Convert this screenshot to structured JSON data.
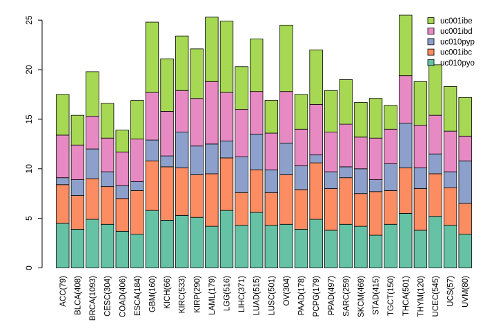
{
  "chart_data": {
    "type": "bar",
    "stacked": true,
    "title": "",
    "xlabel": "",
    "ylabel": "",
    "ylim": [
      0,
      25.5
    ],
    "yticks": [
      0,
      5,
      10,
      15,
      20,
      25
    ],
    "grid": false,
    "legend_position": "top-right",
    "categories": [
      "ACC(79)",
      "BLCA(408)",
      "BRCA(1093)",
      "CESC(304)",
      "COAD(406)",
      "ESCA(184)",
      "GBM(160)",
      "KICH(66)",
      "KIRC(533)",
      "KIRP(290)",
      "LAML(179)",
      "LGG(516)",
      "LIHC(371)",
      "LUAD(515)",
      "LUSC(501)",
      "OV(304)",
      "PAAD(178)",
      "PCPG(179)",
      "PPAD(497)",
      "SARC(259)",
      "SKCM(469)",
      "STAD(415)",
      "TGCT(150)",
      "THCA(501)",
      "THYM(120)",
      "UCEC(545)",
      "UCS(57)",
      "UVM(80)"
    ],
    "series": [
      {
        "name": "uc010pyo",
        "color": "#66c2a5",
        "values": [
          4.5,
          3.9,
          4.9,
          4.4,
          3.7,
          3.4,
          5.8,
          4.8,
          5.3,
          5.1,
          4.2,
          5.8,
          4.3,
          5.6,
          4.3,
          4.4,
          3.9,
          4.9,
          3.8,
          4.4,
          4.2,
          3.3,
          4.4,
          5.5,
          3.8,
          5.2,
          4.3,
          3.4
        ]
      },
      {
        "name": "uc001ibc",
        "color": "#fc8d62",
        "values": [
          3.9,
          3.4,
          4.1,
          3.8,
          3.3,
          4.4,
          5.0,
          5.4,
          4.8,
          4.3,
          5.3,
          5.3,
          3.3,
          4.3,
          3.3,
          5.0,
          4.0,
          5.7,
          4.2,
          4.7,
          3.3,
          4.4,
          3.4,
          4.6,
          4.2,
          4.3,
          3.8,
          3.1
        ]
      },
      {
        "name": "uc010pyp",
        "color": "#8da0cb",
        "values": [
          0.7,
          1.6,
          3.0,
          1.5,
          1.3,
          0.9,
          2.1,
          1.1,
          3.6,
          2.9,
          3.0,
          1.7,
          3.6,
          3.6,
          2.3,
          3.2,
          2.4,
          0.8,
          1.7,
          1.1,
          2.5,
          1.2,
          2.7,
          4.5,
          2.1,
          2.0,
          1.6,
          4.3
        ]
      },
      {
        "name": "uc001ibd",
        "color": "#e78ac3",
        "values": [
          4.3,
          3.5,
          3.3,
          3.4,
          3.4,
          4.3,
          4.8,
          4.5,
          4.2,
          4.8,
          6.3,
          4.9,
          4.8,
          4.3,
          3.7,
          5.2,
          3.7,
          5.1,
          4.0,
          4.3,
          3.2,
          4.2,
          3.5,
          4.8,
          4.3,
          3.9,
          4.1,
          2.5
        ]
      },
      {
        "name": "uc001ibe",
        "color": "#a6d854",
        "values": [
          4.1,
          3.0,
          4.5,
          3.5,
          2.2,
          3.9,
          7.1,
          5.3,
          5.5,
          5.0,
          6.5,
          7.2,
          4.3,
          5.3,
          3.3,
          6.7,
          3.5,
          5.5,
          4.2,
          4.5,
          3.5,
          4.0,
          2.4,
          6.1,
          4.4,
          5.1,
          4.5,
          3.9
        ]
      }
    ],
    "legend_order": [
      "uc001ibe",
      "uc001ibd",
      "uc010pyp",
      "uc001ibc",
      "uc010pyo"
    ]
  }
}
